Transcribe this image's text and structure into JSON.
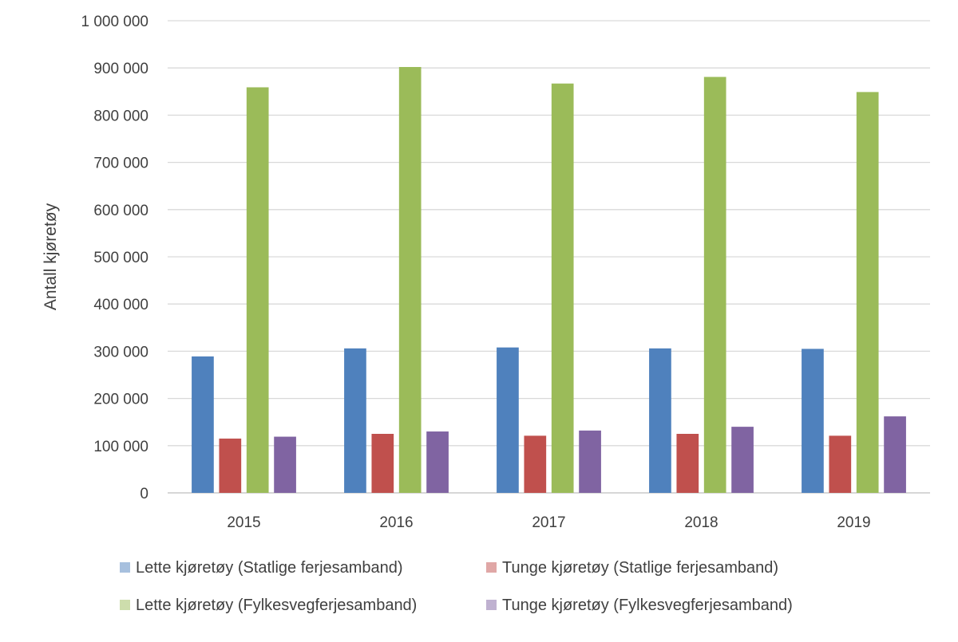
{
  "chart_data": {
    "type": "bar",
    "ylabel": "Antall kjøretøy",
    "ylim": [
      0,
      1000000
    ],
    "ytick_step": 100000,
    "yticks": [
      "0",
      "100 000",
      "200 000",
      "300 000",
      "400 000",
      "500 000",
      "600 000",
      "700 000",
      "800 000",
      "900 000",
      "1 000 000"
    ],
    "categories": [
      "2015",
      "2016",
      "2017",
      "2018",
      "2019"
    ],
    "grid": true,
    "legend_position": "bottom",
    "series": [
      {
        "name": "Lette kjøretøy (Statlige ferjesamband)",
        "color": "#4F81BD",
        "legend_color": "#A7C0DE",
        "values": [
          289000,
          306000,
          308000,
          306000,
          305000
        ]
      },
      {
        "name": "Tunge kjøretøy (Statlige ferjesamband)",
        "color": "#C0504D",
        "legend_color": "#E0A7A6",
        "values": [
          115000,
          125000,
          121000,
          125000,
          121000
        ]
      },
      {
        "name": "Lette kjøretøy (Fylkesvegferjesamband)",
        "color": "#9BBB59",
        "legend_color": "#CDDDAC",
        "values": [
          859000,
          902000,
          867000,
          881000,
          849000
        ]
      },
      {
        "name": "Tunge kjøretøy (Fylkesvegferjesamband)",
        "color": "#8064A2",
        "legend_color": "#BFB1D0",
        "values": [
          119000,
          130000,
          132000,
          140000,
          162000
        ]
      }
    ]
  }
}
